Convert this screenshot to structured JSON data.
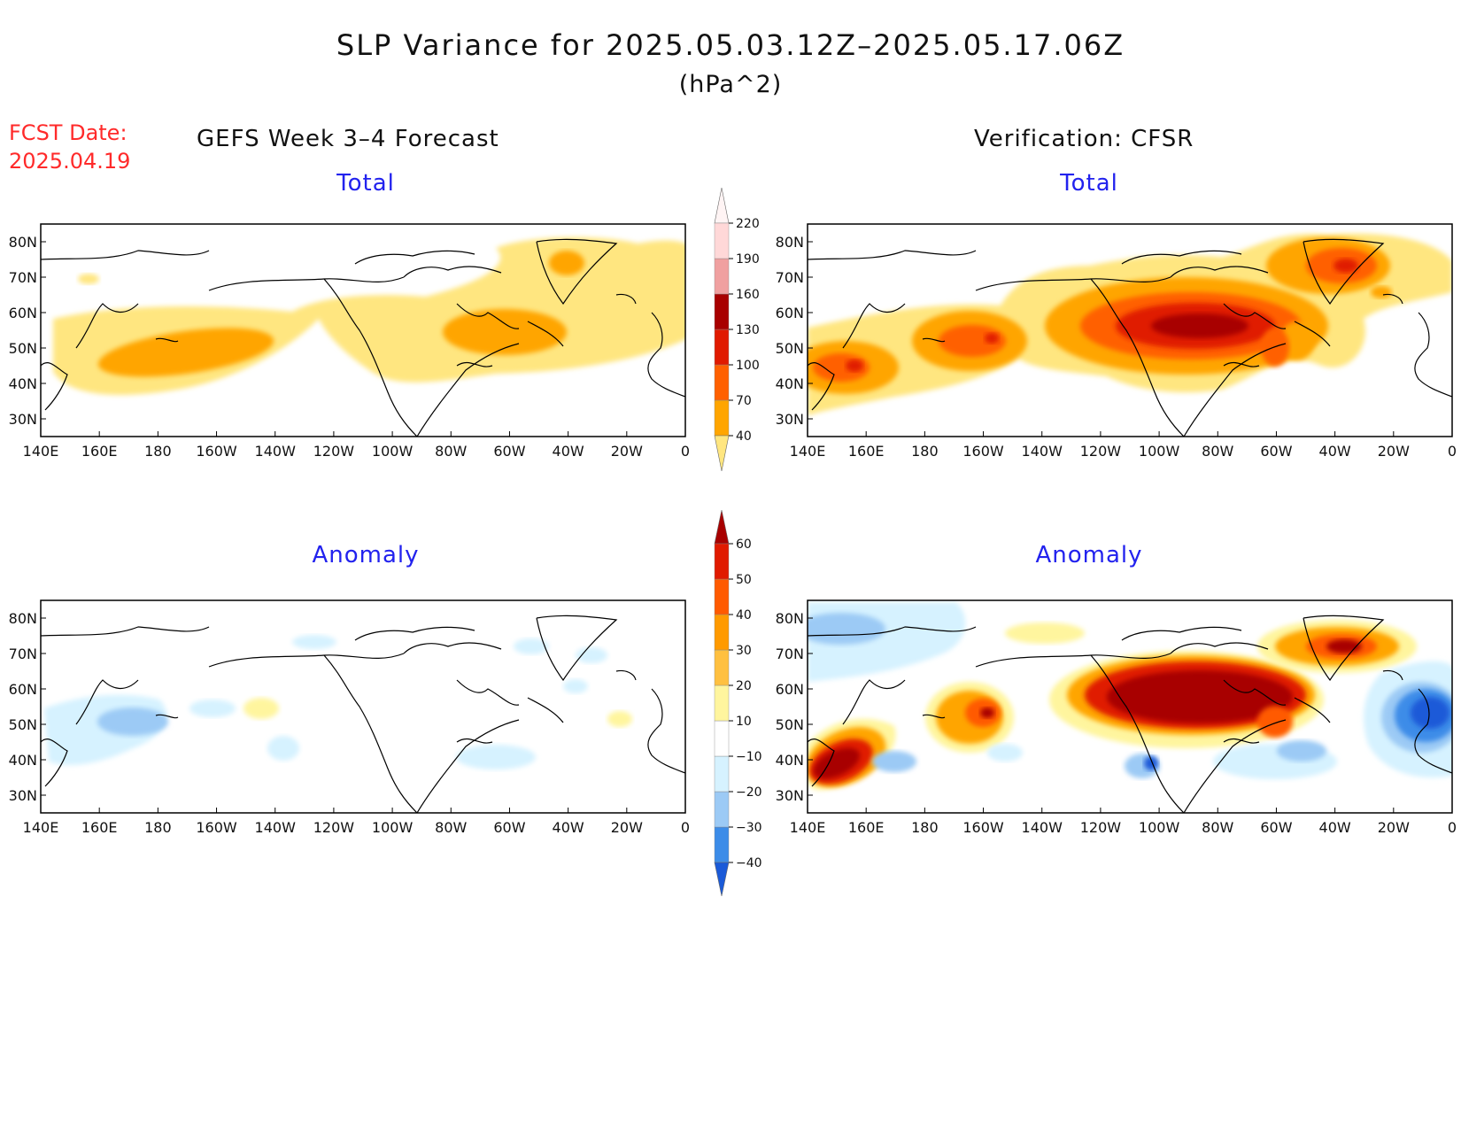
{
  "title": "SLP Variance for 2025.05.03.12Z–2025.05.17.06Z",
  "units": "(hPa^2)",
  "fcst_label": "FCST Date:",
  "fcst_date": "2025.04.19",
  "left_column_title": "GEFS Week 3–4 Forecast",
  "right_column_title": "Verification: CFSR",
  "panels": [
    {
      "id": "gefs-total",
      "subtitle": "Total"
    },
    {
      "id": "cfsr-total",
      "subtitle": "Total"
    },
    {
      "id": "gefs-anomaly",
      "subtitle": "Anomaly"
    },
    {
      "id": "cfsr-anomaly",
      "subtitle": "Anomaly"
    }
  ],
  "lat_labels": [
    "30N",
    "40N",
    "50N",
    "60N",
    "70N",
    "80N"
  ],
  "lon_labels": [
    "140E",
    "160E",
    "180",
    "160W",
    "140W",
    "120W",
    "100W",
    "80W",
    "60W",
    "40W",
    "20W",
    "0"
  ],
  "total_colorbar": {
    "labels": [
      "40",
      "70",
      "100",
      "130",
      "160",
      "190",
      "220"
    ],
    "colors": [
      "#ffe680",
      "#ffa500",
      "#ff6000",
      "#e01a00",
      "#a80000",
      "#f0a0a0",
      "#ffd8d8",
      "#fff4f4"
    ]
  },
  "anomaly_colorbar": {
    "labels": [
      "−40",
      "−30",
      "−20",
      "−10",
      "10",
      "20",
      "30",
      "40",
      "50",
      "60"
    ],
    "colors": [
      "#1a5ad8",
      "#3c8ce8",
      "#9ccaf5",
      "#d6f2ff",
      "#ffffff",
      "#fff59e",
      "#ffc040",
      "#ff9a00",
      "#ff5a00",
      "#e01a00",
      "#a80000"
    ]
  },
  "colors": {
    "title_text": "#111111",
    "fcst_text": "#ff2a2a",
    "panel_title": "#2222ee"
  }
}
